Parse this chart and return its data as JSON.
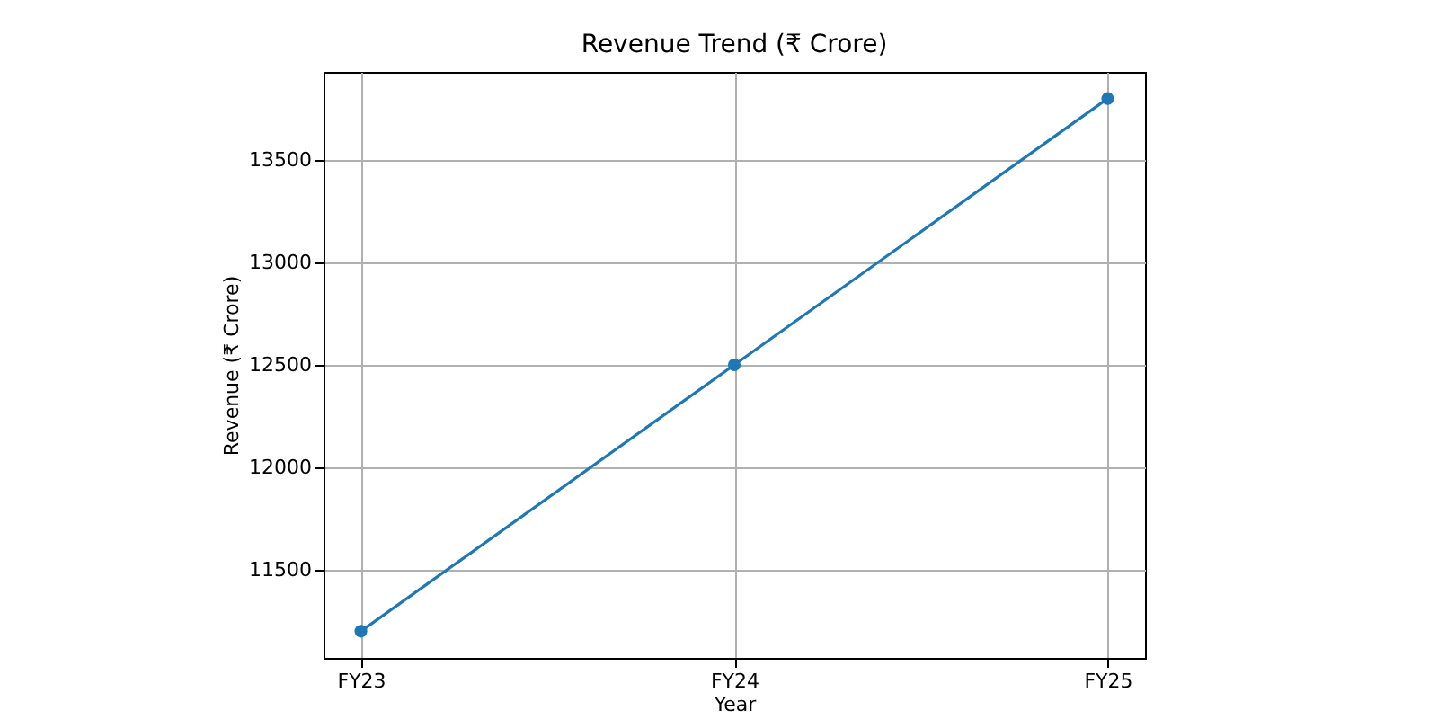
{
  "chart_data": {
    "type": "line",
    "title": "Revenue Trend (₹ Crore)",
    "xlabel": "Year",
    "ylabel": "Revenue (₹ Crore)",
    "categories": [
      "FY23",
      "FY24",
      "FY25"
    ],
    "series": [
      {
        "color": "#1f77b4",
        "values": [
          11200,
          12500,
          13800
        ]
      }
    ],
    "ylim": [
      11070,
      13930
    ],
    "yticks": [
      11500,
      12000,
      12500,
      13000,
      13500
    ],
    "grid": true,
    "marker": "circle"
  }
}
